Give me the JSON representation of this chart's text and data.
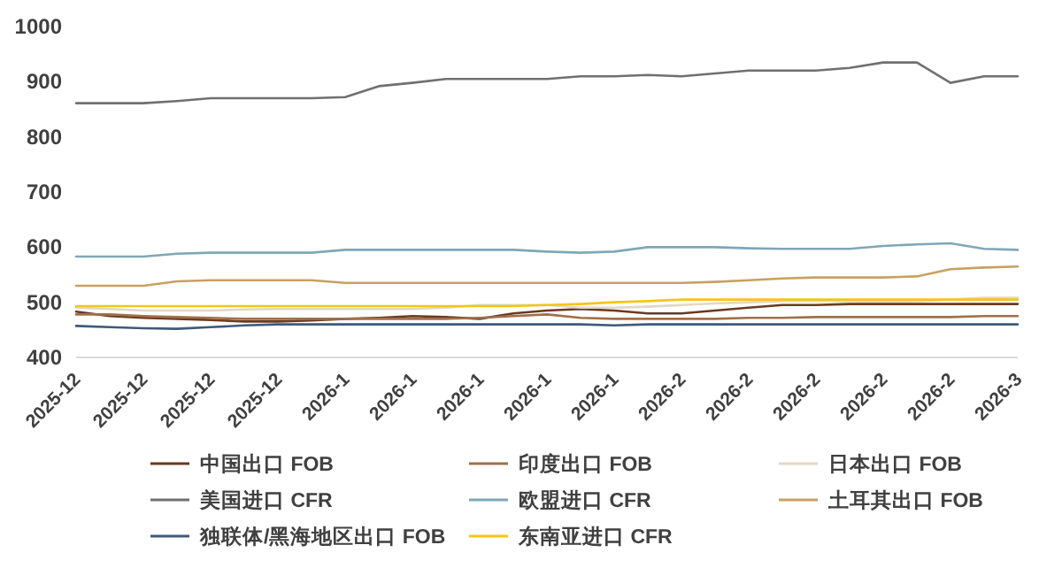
{
  "chart_data": {
    "type": "line",
    "categories": [
      "2025-12",
      null,
      "2025-12",
      null,
      "2025-12",
      null,
      "2025-12",
      null,
      "2026-1",
      null,
      "2026-1",
      null,
      "2026-1",
      null,
      "2026-1",
      null,
      "2026-1",
      null,
      "2026-2",
      null,
      "2026-2",
      null,
      "2026-2",
      null,
      "2026-2",
      null,
      "2026-2",
      null,
      "2026-3"
    ],
    "ylim": [
      400,
      1000
    ],
    "yticks": [
      400,
      500,
      600,
      700,
      800,
      900,
      1000
    ],
    "grid": false,
    "legend": "bottom",
    "line_style": "solid",
    "marker": "none",
    "series": [
      {
        "name": "中国出口 FOB",
        "color": "#6b3a1f",
        "values": [
          483,
          475,
          472,
          470,
          468,
          465,
          465,
          467,
          470,
          472,
          475,
          473,
          470,
          480,
          485,
          488,
          485,
          480,
          480,
          485,
          490,
          495,
          495,
          497,
          497,
          497,
          497,
          497,
          497
        ]
      },
      {
        "name": "印度出口 FOB",
        "color": "#a0704a",
        "values": [
          478,
          478,
          475,
          473,
          472,
          470,
          470,
          470,
          470,
          470,
          470,
          470,
          472,
          475,
          478,
          472,
          470,
          470,
          470,
          470,
          472,
          472,
          473,
          473,
          473,
          473,
          473,
          475,
          475
        ]
      },
      {
        "name": "日本出口 FOB",
        "color": "#e0d8c8",
        "values": [
          490,
          488,
          485,
          485,
          485,
          487,
          488,
          488,
          488,
          488,
          488,
          490,
          495,
          495,
          495,
          490,
          490,
          492,
          495,
          498,
          500,
          502,
          502,
          502,
          502,
          502,
          505,
          508,
          508
        ]
      },
      {
        "name": "美国进口 CFR",
        "color": "#707070",
        "values": [
          861,
          861,
          861,
          865,
          870,
          870,
          870,
          870,
          872,
          892,
          898,
          905,
          905,
          905,
          905,
          910,
          910,
          912,
          910,
          915,
          920,
          920,
          920,
          925,
          935,
          935,
          898,
          910,
          910
        ]
      },
      {
        "name": "欧盟进口 CFR",
        "color": "#7fa7b8",
        "values": [
          583,
          583,
          583,
          588,
          590,
          590,
          590,
          590,
          595,
          595,
          595,
          595,
          595,
          595,
          592,
          590,
          592,
          600,
          600,
          600,
          598,
          597,
          597,
          597,
          602,
          605,
          607,
          597,
          595
        ]
      },
      {
        "name": "土耳其出口 FOB",
        "color": "#c9a060",
        "values": [
          530,
          530,
          530,
          538,
          540,
          540,
          540,
          540,
          535,
          535,
          535,
          535,
          535,
          535,
          535,
          535,
          535,
          535,
          535,
          537,
          540,
          543,
          545,
          545,
          545,
          547,
          560,
          563,
          565
        ]
      },
      {
        "name": "独联体/黑海地区出口 FOB",
        "color": "#3e5a7a",
        "values": [
          457,
          455,
          453,
          452,
          455,
          458,
          460,
          460,
          460,
          460,
          460,
          460,
          460,
          460,
          460,
          460,
          458,
          460,
          460,
          460,
          460,
          460,
          460,
          460,
          460,
          460,
          460,
          460,
          460
        ]
      },
      {
        "name": "东南亚进口 CFR",
        "color": "#f5c518",
        "values": [
          493,
          493,
          493,
          493,
          493,
          493,
          493,
          493,
          493,
          493,
          493,
          493,
          493,
          493,
          495,
          497,
          500,
          502,
          505,
          505,
          505,
          505,
          505,
          505,
          505,
          505,
          505,
          505,
          505
        ]
      }
    ]
  }
}
